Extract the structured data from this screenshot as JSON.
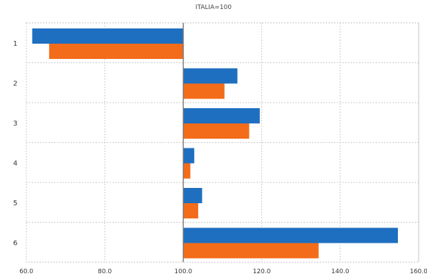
{
  "chart_data": {
    "type": "bar",
    "orientation": "horizontal",
    "title": "ITALIA=100",
    "xlabel": "",
    "ylabel": "",
    "categories": [
      "1",
      "2",
      "3",
      "4",
      "5",
      "6"
    ],
    "series": [
      {
        "color": "#1f6fc0",
        "values": [
          61.5,
          113.8,
          119.5,
          102.8,
          104.8,
          154.7
        ]
      },
      {
        "color": "#f36c1a",
        "values": [
          65.8,
          110.5,
          116.8,
          101.8,
          103.8,
          134.5
        ]
      }
    ],
    "baseline": 100,
    "xlim": [
      60,
      160
    ],
    "xticks": [
      "60.0",
      "80.0",
      "100.0",
      "120.0",
      "140.0",
      "160.0"
    ],
    "grid": true,
    "legend": "none"
  }
}
